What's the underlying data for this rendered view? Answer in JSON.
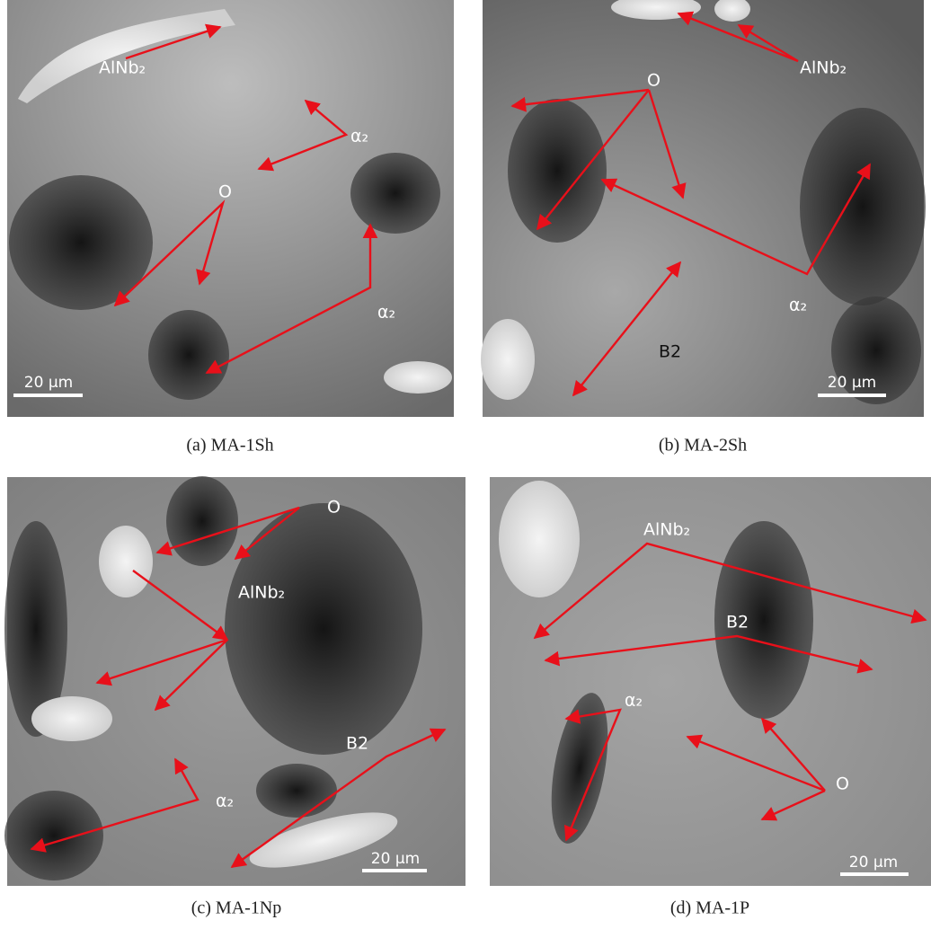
{
  "panels": [
    {
      "caption": "(a) MA-1Sh",
      "labels": [
        "AlNb₂",
        "α₂",
        "O",
        "α₂"
      ],
      "scale_bar": "20 µm"
    },
    {
      "caption": "(b) MA-2Sh",
      "labels": [
        "AlNb₂",
        "O",
        "α₂",
        "B2"
      ],
      "scale_bar": "20 µm"
    },
    {
      "caption": "(c) MA-1Np",
      "labels": [
        "O",
        "AlNb₂",
        "B2",
        "α₂"
      ],
      "scale_bar": "20 µm"
    },
    {
      "caption": "(d) MA-1P",
      "labels": [
        "AlNb₂",
        "B2",
        "α₂",
        "O"
      ],
      "scale_bar": "20 µm"
    }
  ]
}
